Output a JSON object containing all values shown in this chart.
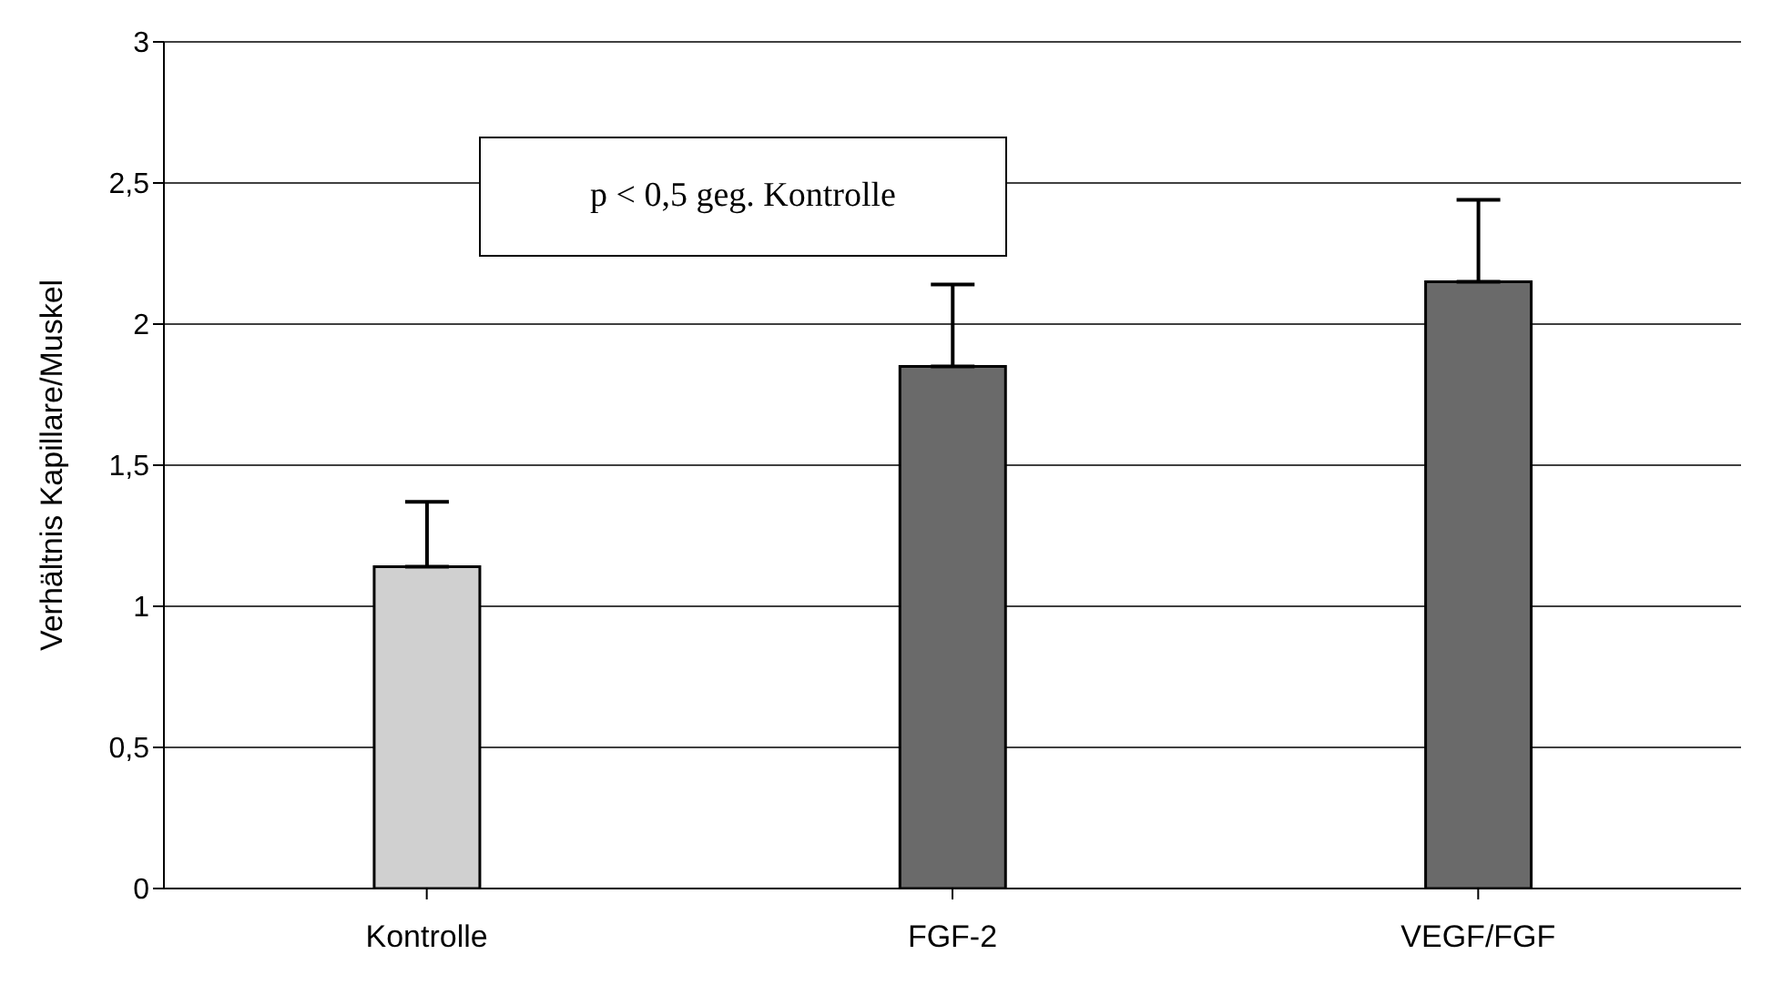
{
  "chart_data": {
    "type": "bar",
    "ylabel": "Verhältnis Kapillare/Muskel",
    "categories": [
      "Kontrolle",
      "FGF-2",
      "VEGF/FGF"
    ],
    "values": [
      1.14,
      1.85,
      2.15
    ],
    "colors": [
      "#d0d0d0",
      "#6a6a6a",
      "#6a6a6a"
    ],
    "errors": [
      [
        1.14,
        1.37
      ],
      [
        1.85,
        2.14
      ],
      [
        2.15,
        2.44
      ]
    ],
    "ylim": [
      0,
      3
    ],
    "yticks": [
      {
        "value": 0,
        "label": "0"
      },
      {
        "value": 0.5,
        "label": "0,5"
      },
      {
        "value": 1,
        "label": "1"
      },
      {
        "value": 1.5,
        "label": "1,5"
      },
      {
        "value": 2,
        "label": "2"
      },
      {
        "value": 2.5,
        "label": "2,5"
      },
      {
        "value": 3,
        "label": "3"
      }
    ],
    "grid": "y",
    "legend": false,
    "annotations": [
      "p < 0,5 geg. Kontrolle"
    ]
  }
}
